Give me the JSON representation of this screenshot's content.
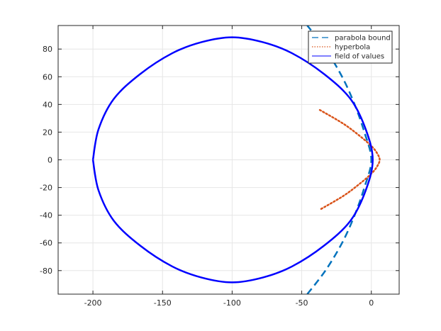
{
  "chart_data": {
    "type": "line",
    "title": "",
    "xlabel": "",
    "ylabel": "",
    "xlim": [
      -225,
      20
    ],
    "ylim": [
      -97,
      97
    ],
    "x_ticks": [
      -200,
      -150,
      -100,
      -50,
      0
    ],
    "y_ticks": [
      -80,
      -60,
      -40,
      -20,
      0,
      20,
      40,
      60,
      80
    ],
    "x_tick_labels": [
      "-200",
      "-150",
      "-100",
      "-50",
      "0"
    ],
    "y_tick_labels": [
      "-80",
      "-60",
      "-40",
      "-20",
      "0",
      "20",
      "40",
      "60",
      "80"
    ],
    "grid": true,
    "legend_position": "top-right",
    "series": [
      {
        "name": "parabola bound",
        "style": "dashed",
        "color": "#0072BD",
        "points": [
          [
            -46,
            -97
          ],
          [
            -33,
            -80
          ],
          [
            -21,
            -60
          ],
          [
            -12,
            -40
          ],
          [
            -5,
            -20
          ],
          [
            0,
            0
          ],
          [
            -5,
            20
          ],
          [
            -12,
            40
          ],
          [
            -21,
            60
          ],
          [
            -33,
            80
          ],
          [
            -46,
            97
          ]
        ]
      },
      {
        "name": "hyperbola",
        "style": "dotted",
        "color": "#D95319",
        "points": [
          [
            -37,
            36
          ],
          [
            -20,
            26
          ],
          [
            -8,
            17
          ],
          [
            0,
            10
          ],
          [
            4,
            5
          ],
          [
            6,
            0
          ],
          [
            4,
            -5
          ],
          [
            0,
            -10
          ],
          [
            -8,
            -17
          ],
          [
            -20,
            -26
          ],
          [
            -37,
            -36
          ]
        ]
      },
      {
        "name": "field of values",
        "style": "solid",
        "color": "#0000FF",
        "points": [
          [
            -200,
            0
          ],
          [
            -196,
            22
          ],
          [
            -185,
            44
          ],
          [
            -166,
            62
          ],
          [
            -143,
            77
          ],
          [
            -122,
            85
          ],
          [
            -100,
            88.5
          ],
          [
            -78,
            85
          ],
          [
            -57,
            77
          ],
          [
            -34,
            62
          ],
          [
            -15,
            44
          ],
          [
            -4,
            22
          ],
          [
            1,
            0
          ],
          [
            -4,
            -22
          ],
          [
            -15,
            -44
          ],
          [
            -34,
            -62
          ],
          [
            -57,
            -77
          ],
          [
            -78,
            -85
          ],
          [
            -100,
            -88.5
          ],
          [
            -122,
            -85
          ],
          [
            -143,
            -77
          ],
          [
            -166,
            -62
          ],
          [
            -185,
            -44
          ],
          [
            -196,
            -22
          ],
          [
            -200,
            0
          ]
        ]
      }
    ]
  }
}
